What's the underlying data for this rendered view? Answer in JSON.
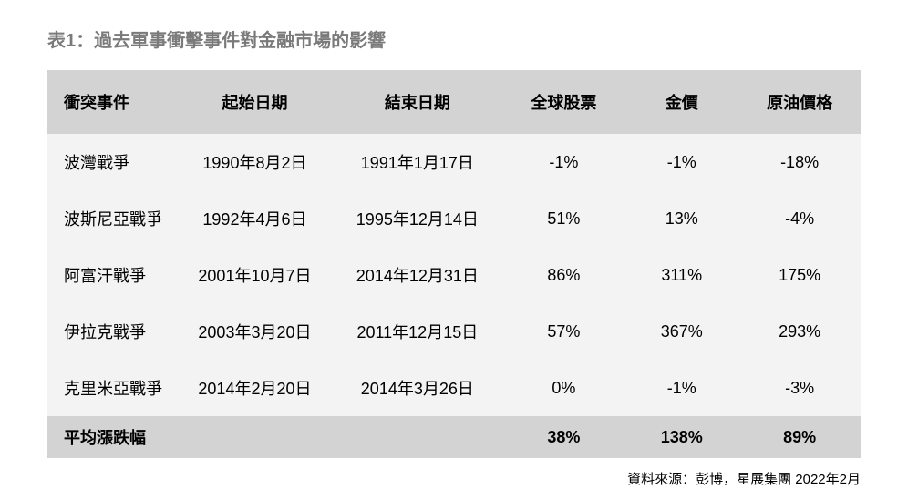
{
  "title": "表1：過去軍事衝擊事件對金融市場的影響",
  "headers": {
    "event": "衝突事件",
    "start": "起始日期",
    "end": "結束日期",
    "stocks": "全球股票",
    "gold": "金價",
    "oil": "原油價格"
  },
  "rows": [
    {
      "event": "波灣戰爭",
      "start": "1990年8月2日",
      "end": "1991年1月17日",
      "stocks": "-1%",
      "gold": "-1%",
      "oil": "-18%"
    },
    {
      "event": "波斯尼亞戰爭",
      "start": "1992年4月6日",
      "end": "1995年12月14日",
      "stocks": "51%",
      "gold": "13%",
      "oil": "-4%"
    },
    {
      "event": "阿富汗戰爭",
      "start": "2001年10月7日",
      "end": "2014年12月31日",
      "stocks": "86%",
      "gold": "311%",
      "oil": "175%"
    },
    {
      "event": "伊拉克戰爭",
      "start": "2003年3月20日",
      "end": "2011年12月15日",
      "stocks": "57%",
      "gold": "367%",
      "oil": "293%"
    },
    {
      "event": "克里米亞戰爭",
      "start": "2014年2月20日",
      "end": "2014年3月26日",
      "stocks": "0%",
      "gold": "-1%",
      "oil": "-3%"
    }
  ],
  "average": {
    "label": "平均漲跌幅",
    "stocks": "38%",
    "gold": "138%",
    "oil": "89%"
  },
  "source": "資料來源：彭博，星展集團 2022年2月",
  "style": {
    "header_bg": "#d3d3d3",
    "row_bg": "#f3f3f3",
    "avg_bg": "#d3d3d3",
    "title_color": "#7a7a7a",
    "text_color": "#000000",
    "font_size_title": 20,
    "font_size_cell": 18,
    "font_size_source": 15
  }
}
